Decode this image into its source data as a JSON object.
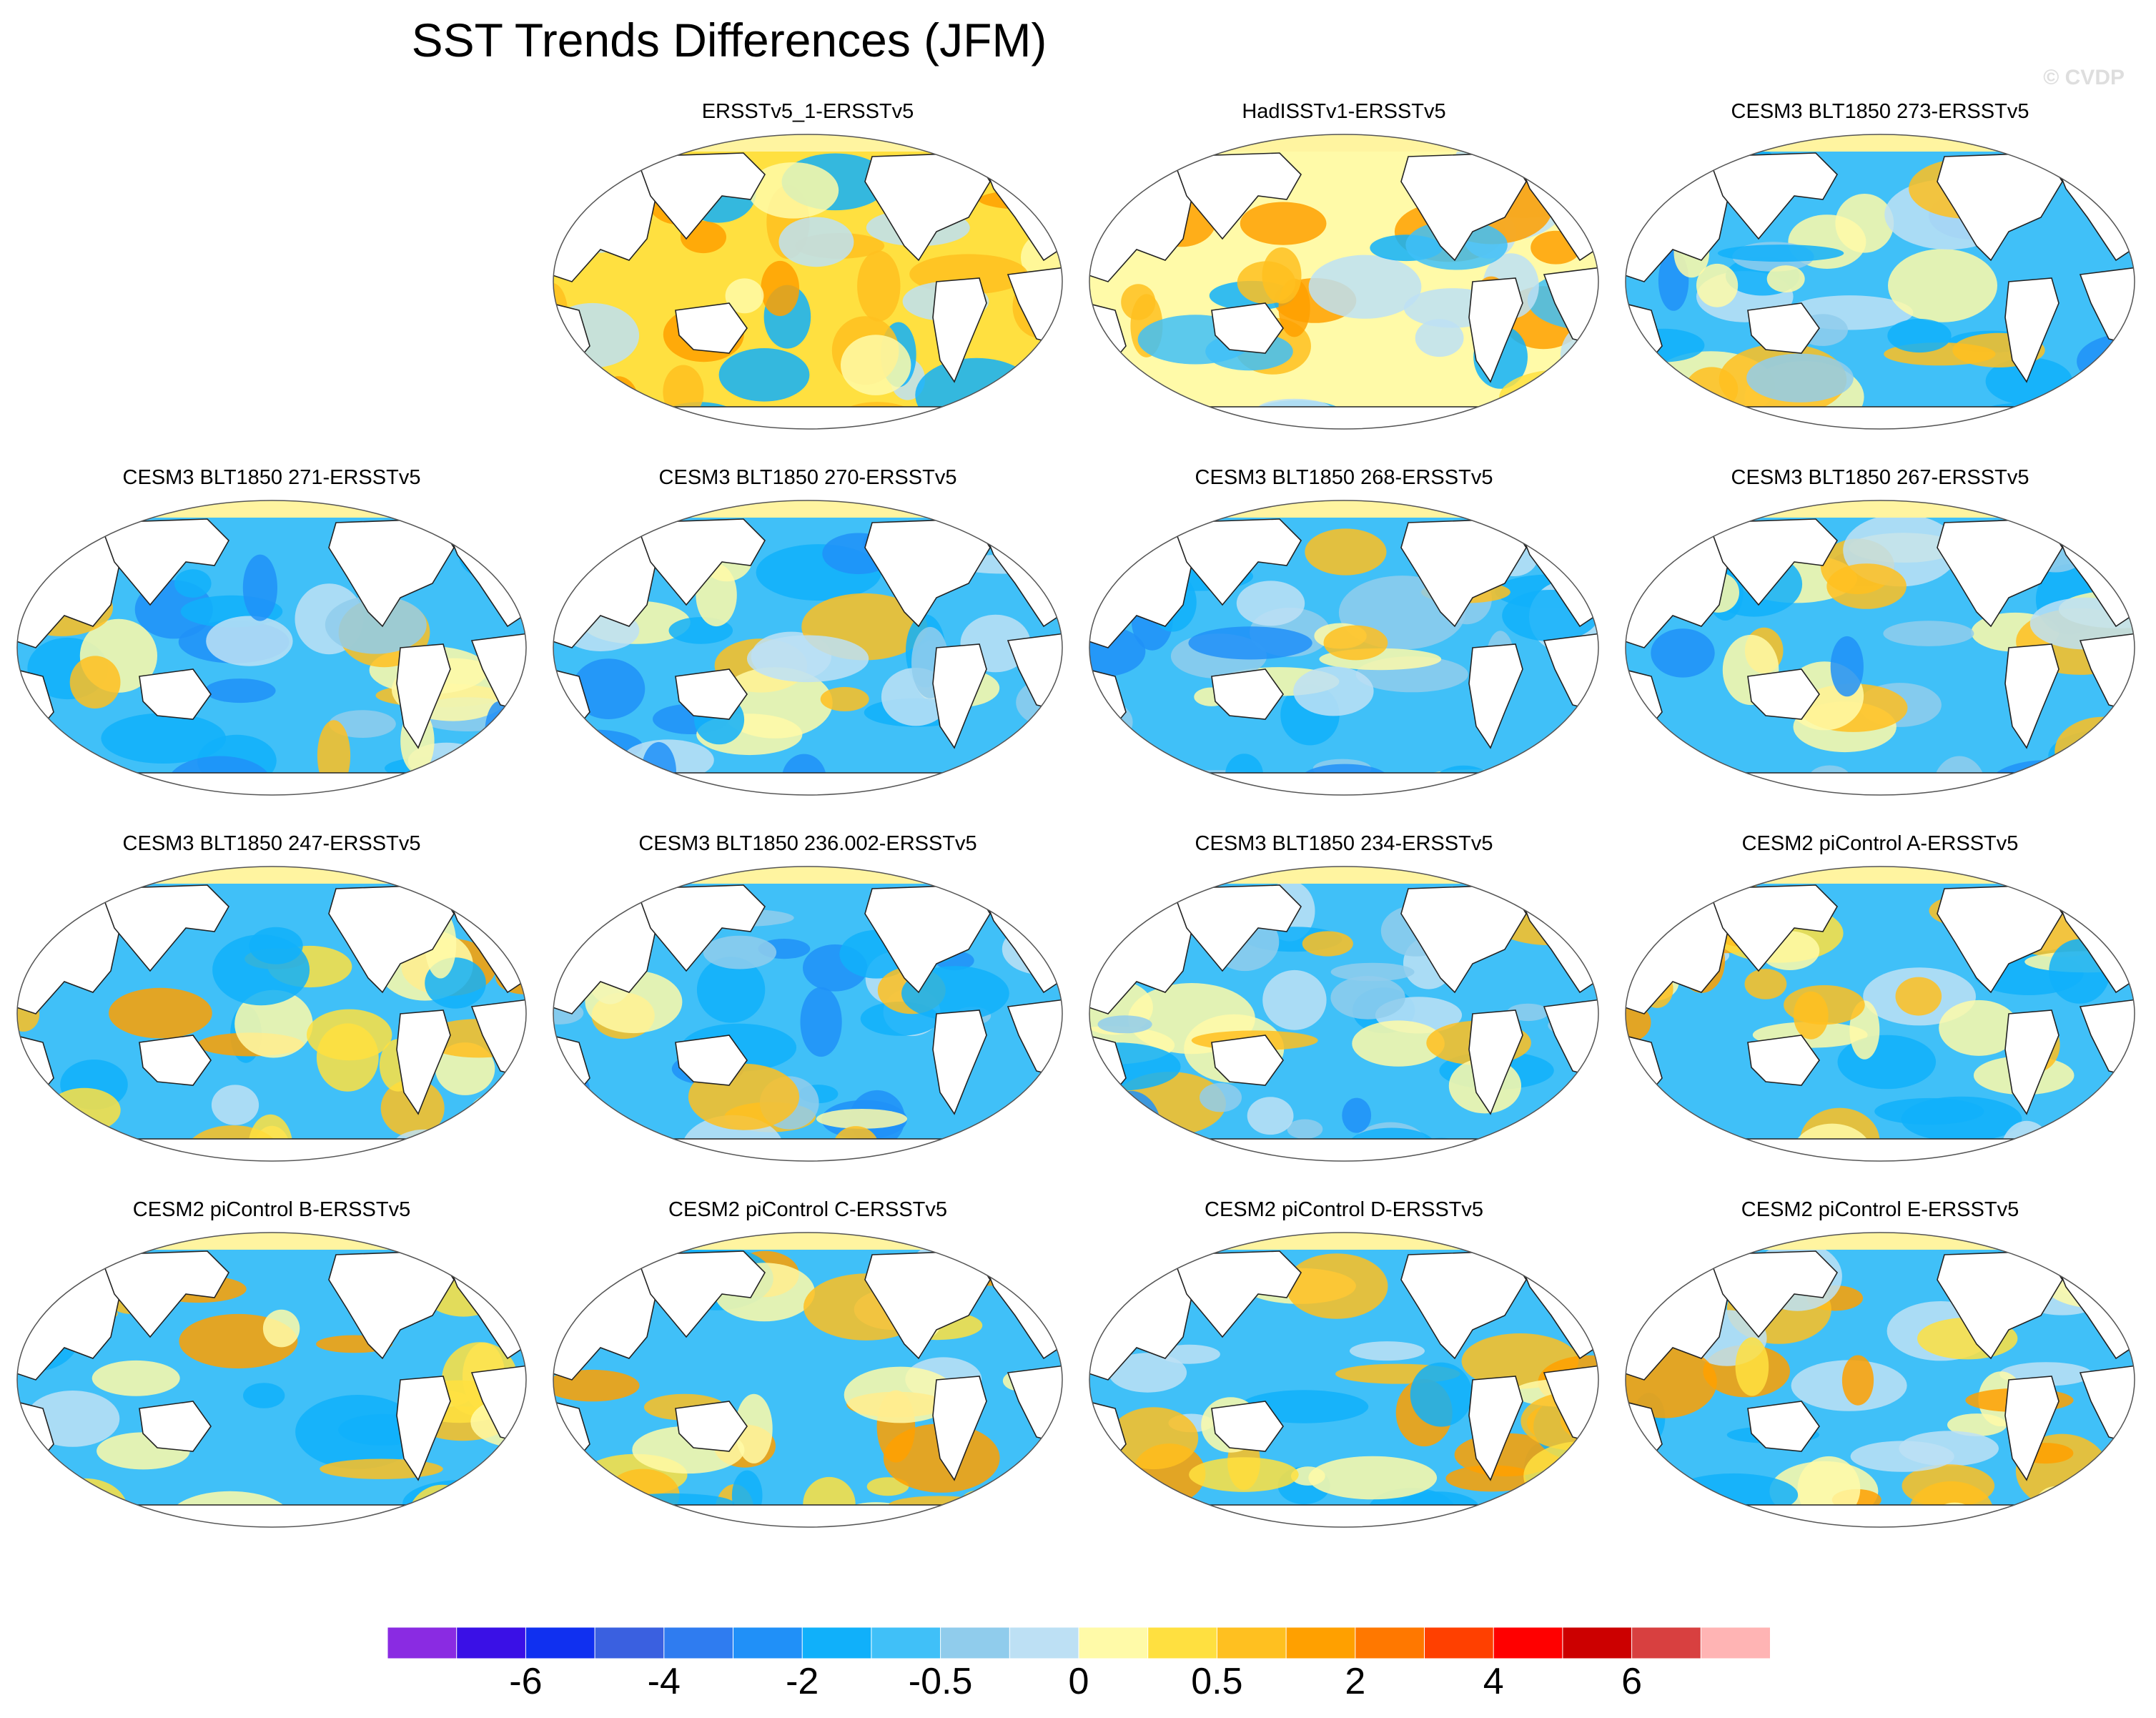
{
  "title": "SST Trends Differences (JFM)",
  "credit": "© CVDP",
  "icons": {
    "map": "robinson-world-map-icon"
  },
  "panels": [
    {
      "label": "ERSSTv5_1-ERSSTv5",
      "pattern": "warm"
    },
    {
      "label": "HadISSTv1-ERSSTv5",
      "pattern": "mixed-warm"
    },
    {
      "label": "CESM3 BLT1850 273-ERSSTv5",
      "pattern": "cool"
    },
    {
      "label": "CESM3 BLT1850 271-ERSSTv5",
      "pattern": "cool"
    },
    {
      "label": "CESM3 BLT1850 270-ERSSTv5",
      "pattern": "cool"
    },
    {
      "label": "CESM3 BLT1850 268-ERSSTv5",
      "pattern": "cool"
    },
    {
      "label": "CESM3 BLT1850 267-ERSSTv5",
      "pattern": "cool"
    },
    {
      "label": "CESM3 BLT1850 247-ERSSTv5",
      "pattern": "mixed"
    },
    {
      "label": "CESM3 BLT1850 236.002-ERSSTv5",
      "pattern": "cool"
    },
    {
      "label": "CESM3 BLT1850 234-ERSSTv5",
      "pattern": "cool"
    },
    {
      "label": "CESM2 piControl A-ERSSTv5",
      "pattern": "mixed"
    },
    {
      "label": "CESM2 piControl B-ERSSTv5",
      "pattern": "mixed"
    },
    {
      "label": "CESM2 piControl C-ERSSTv5",
      "pattern": "mixed"
    },
    {
      "label": "CESM2 piControl D-ERSSTv5",
      "pattern": "mixed"
    },
    {
      "label": "CESM2 piControl E-ERSSTv5",
      "pattern": "mixed"
    }
  ],
  "chart_data": {
    "type": "heatmap",
    "title": "SST Trends Differences (JFM)",
    "projection": "robinson",
    "colorbar": {
      "tick_labels": [
        "-6",
        "-4",
        "-2",
        "-0.5",
        "0",
        "0.5",
        "2",
        "4",
        "6"
      ],
      "tick_boundary_index": [
        2,
        4,
        6,
        8,
        10,
        12,
        14,
        16,
        18
      ],
      "colors": [
        "#8a2be2",
        "#3a10e6",
        "#1030f0",
        "#3a60e0",
        "#2f7cf0",
        "#2090f8",
        "#10b0fa",
        "#40c0f8",
        "#90ccec",
        "#bde0f4",
        "#fffaa8",
        "#ffe040",
        "#ffc020",
        "#ffa000",
        "#ff7800",
        "#ff4000",
        "#ff0000",
        "#cc0000",
        "#d84040",
        "#ffb4b4"
      ]
    },
    "panel_titles": [
      "ERSSTv5_1-ERSSTv5",
      "HadISSTv1-ERSSTv5",
      "CESM3 BLT1850 273-ERSSTv5",
      "CESM3 BLT1850 271-ERSSTv5",
      "CESM3 BLT1850 270-ERSSTv5",
      "CESM3 BLT1850 268-ERSSTv5",
      "CESM3 BLT1850 267-ERSSTv5",
      "CESM3 BLT1850 247-ERSSTv5",
      "CESM3 BLT1850 236.002-ERSSTv5",
      "CESM3 BLT1850 234-ERSSTv5",
      "CESM2 piControl A-ERSSTv5",
      "CESM2 piControl B-ERSSTv5",
      "CESM2 piControl C-ERSSTv5",
      "CESM2 piControl D-ERSSTv5",
      "CESM2 piControl E-ERSSTv5"
    ]
  }
}
